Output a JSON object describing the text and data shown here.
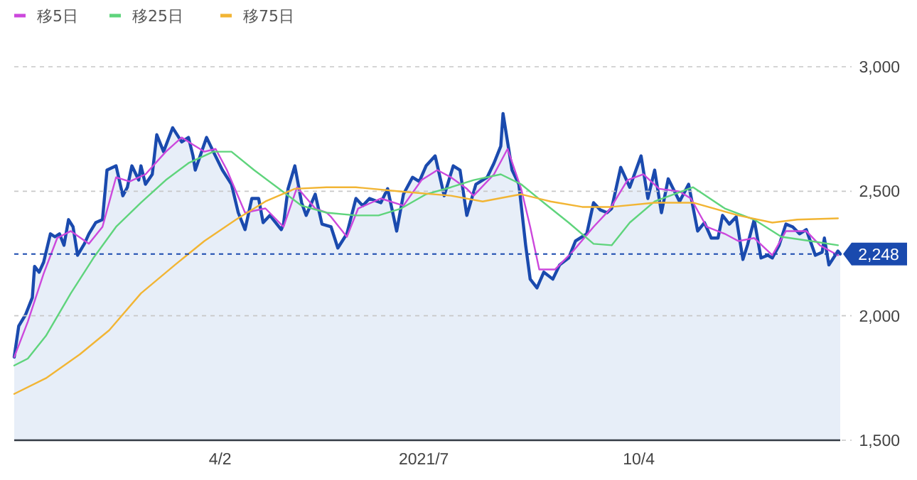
{
  "chart_data": {
    "type": "line",
    "xlim": [
      "2021-01-01",
      "2022-01-01"
    ],
    "xticks": [
      {
        "value": "2021-04-02",
        "label": "4/2"
      },
      {
        "value": "2021-07-01",
        "label": "2021/7"
      },
      {
        "value": "2021-10-04",
        "label": "10/4"
      }
    ],
    "ylim": [
      1500,
      3000
    ],
    "yticks": [
      {
        "value": 1500,
        "label": "1,500"
      },
      {
        "value": 2000,
        "label": "2,000"
      },
      {
        "value": 2500,
        "label": "2,500"
      },
      {
        "value": 3000,
        "label": "3,000"
      }
    ],
    "grid": "y",
    "legend": "top left",
    "series": [
      {
        "type": "area",
        "color": "#1a4aae",
        "x": [
          "2021-01-01",
          "2021-01-03",
          "2021-01-06",
          "2021-01-09",
          "2021-01-10",
          "2021-01-12",
          "2021-01-14",
          "2021-01-17",
          "2021-01-19",
          "2021-01-21",
          "2021-01-23",
          "2021-01-25",
          "2021-01-27",
          "2021-01-29",
          "2021-02-01",
          "2021-02-03",
          "2021-02-06",
          "2021-02-09",
          "2021-02-11",
          "2021-02-15",
          "2021-02-18",
          "2021-02-20",
          "2021-02-22",
          "2021-02-25",
          "2021-02-26",
          "2021-02-28",
          "2021-03-03",
          "2021-03-05",
          "2021-03-08",
          "2021-03-12",
          "2021-03-16",
          "2021-03-19",
          "2021-03-21",
          "2021-03-22",
          "2021-03-27",
          "2021-03-30",
          "2021-04-03",
          "2021-04-07",
          "2021-04-10",
          "2021-04-13",
          "2021-04-16",
          "2021-04-19",
          "2021-04-21",
          "2021-04-24",
          "2021-04-29",
          "2021-04-30",
          "2021-05-02",
          "2021-05-05",
          "2021-05-08",
          "2021-05-10",
          "2021-05-14",
          "2021-05-17",
          "2021-05-21",
          "2021-05-24",
          "2021-05-28",
          "2021-06-01",
          "2021-06-04",
          "2021-06-07",
          "2021-06-12",
          "2021-06-15",
          "2021-06-19",
          "2021-06-22",
          "2021-06-26",
          "2021-06-29",
          "2021-07-02",
          "2021-07-06",
          "2021-07-10",
          "2021-07-14",
          "2021-07-17",
          "2021-07-20",
          "2021-07-24",
          "2021-07-29",
          "2021-08-01",
          "2021-08-04",
          "2021-08-05",
          "2021-08-07",
          "2021-08-09",
          "2021-08-12",
          "2021-08-15",
          "2021-08-17",
          "2021-08-20",
          "2021-08-23",
          "2021-08-27",
          "2021-08-30",
          "2021-09-03",
          "2021-09-06",
          "2021-09-11",
          "2021-09-14",
          "2021-09-17",
          "2021-09-20",
          "2021-09-22",
          "2021-09-26",
          "2021-09-30",
          "2021-10-05",
          "2021-10-08",
          "2021-10-11",
          "2021-10-14",
          "2021-10-17",
          "2021-10-22",
          "2021-10-26",
          "2021-10-30",
          "2021-11-02",
          "2021-11-05",
          "2021-11-08",
          "2021-11-10",
          "2021-11-13",
          "2021-11-16",
          "2021-11-19",
          "2021-11-21",
          "2021-11-24",
          "2021-11-27",
          "2021-11-30",
          "2021-12-02",
          "2021-12-05",
          "2021-12-08",
          "2021-12-11",
          "2021-12-14",
          "2021-12-17",
          "2021-12-21",
          "2021-12-24",
          "2021-12-25",
          "2021-12-27",
          "2021-12-31",
          "2022-01-01"
        ],
        "values": [
          1834,
          1959,
          2004,
          2073,
          2198,
          2175,
          2215,
          2329,
          2317,
          2329,
          2283,
          2386,
          2357,
          2243,
          2289,
          2329,
          2374,
          2386,
          2585,
          2602,
          2482,
          2516,
          2602,
          2545,
          2602,
          2528,
          2568,
          2727,
          2659,
          2755,
          2698,
          2716,
          2642,
          2585,
          2716,
          2659,
          2585,
          2528,
          2414,
          2346,
          2471,
          2471,
          2374,
          2403,
          2346,
          2368,
          2510,
          2602,
          2454,
          2403,
          2488,
          2368,
          2357,
          2272,
          2329,
          2471,
          2442,
          2471,
          2454,
          2510,
          2340,
          2488,
          2556,
          2539,
          2602,
          2642,
          2482,
          2602,
          2585,
          2403,
          2528,
          2556,
          2613,
          2681,
          2812,
          2698,
          2585,
          2528,
          2283,
          2147,
          2112,
          2175,
          2147,
          2204,
          2232,
          2300,
          2329,
          2454,
          2425,
          2414,
          2431,
          2596,
          2516,
          2642,
          2471,
          2585,
          2414,
          2550,
          2459,
          2528,
          2340,
          2374,
          2312,
          2312,
          2403,
          2368,
          2397,
          2226,
          2283,
          2386,
          2232,
          2243,
          2232,
          2283,
          2368,
          2357,
          2329,
          2346,
          2243,
          2255,
          2312,
          2204,
          2260,
          2248
        ]
      },
      {
        "name": "移5日",
        "color": "#cc48dc",
        "x": [
          "2021-01-01",
          "2021-01-07",
          "2021-01-14",
          "2021-01-20",
          "2021-01-26",
          "2021-02-03",
          "2021-02-09",
          "2021-02-15",
          "2021-02-21",
          "2021-02-28",
          "2021-03-09",
          "2021-03-16",
          "2021-03-21",
          "2021-03-26",
          "2021-03-31",
          "2021-04-05",
          "2021-04-13",
          "2021-04-22",
          "2021-04-30",
          "2021-05-06",
          "2021-05-14",
          "2021-05-19",
          "2021-05-21",
          "2021-05-28",
          "2021-06-02",
          "2021-06-12",
          "2021-06-22",
          "2021-06-30",
          "2021-07-07",
          "2021-07-13",
          "2021-07-20",
          "2021-07-23",
          "2021-08-01",
          "2021-08-07",
          "2021-08-13",
          "2021-08-17",
          "2021-08-21",
          "2021-08-28",
          "2021-09-05",
          "2021-09-14",
          "2021-09-21",
          "2021-09-29",
          "2021-10-06",
          "2021-10-13",
          "2021-10-22",
          "2021-10-27",
          "2021-11-03",
          "2021-11-11",
          "2021-11-17",
          "2021-11-24",
          "2021-12-02",
          "2021-12-08",
          "2021-12-17",
          "2021-12-23",
          "2021-12-31"
        ],
        "values": [
          1834,
          1976,
          2169,
          2312,
          2340,
          2289,
          2357,
          2556,
          2539,
          2568,
          2659,
          2716,
          2687,
          2659,
          2670,
          2585,
          2414,
          2431,
          2357,
          2516,
          2431,
          2414,
          2397,
          2317,
          2431,
          2471,
          2442,
          2545,
          2585,
          2556,
          2510,
          2482,
          2568,
          2670,
          2510,
          2357,
          2186,
          2186,
          2260,
          2357,
          2425,
          2545,
          2568,
          2510,
          2499,
          2471,
          2357,
          2329,
          2300,
          2312,
          2243,
          2340,
          2340,
          2283,
          2243
        ]
      },
      {
        "name": "移25日",
        "color": "#5fd47c",
        "x": [
          "2021-01-01",
          "2021-01-07",
          "2021-01-15",
          "2021-01-26",
          "2021-02-05",
          "2021-02-15",
          "2021-02-26",
          "2021-03-09",
          "2021-03-19",
          "2021-03-30",
          "2021-04-07",
          "2021-04-17",
          "2021-04-28",
          "2021-05-08",
          "2021-05-19",
          "2021-06-01",
          "2021-06-11",
          "2021-06-21",
          "2021-07-02",
          "2021-07-13",
          "2021-07-23",
          "2021-08-04",
          "2021-08-13",
          "2021-08-23",
          "2021-09-03",
          "2021-09-14",
          "2021-09-22",
          "2021-09-30",
          "2021-10-11",
          "2021-10-28",
          "2021-11-11",
          "2021-11-24",
          "2021-12-06",
          "2021-12-19",
          "2021-12-31"
        ],
        "values": [
          1800,
          1828,
          1919,
          2090,
          2232,
          2357,
          2454,
          2545,
          2613,
          2659,
          2659,
          2585,
          2510,
          2442,
          2414,
          2403,
          2403,
          2431,
          2488,
          2516,
          2545,
          2568,
          2528,
          2454,
          2374,
          2289,
          2283,
          2374,
          2459,
          2516,
          2431,
          2386,
          2317,
          2300,
          2283
        ]
      },
      {
        "name": "移75日",
        "color": "#f2b534",
        "x": [
          "2021-01-01",
          "2021-01-15",
          "2021-01-30",
          "2021-02-12",
          "2021-02-26",
          "2021-03-13",
          "2021-03-26",
          "2021-04-09",
          "2021-04-22",
          "2021-05-05",
          "2021-05-19",
          "2021-06-01",
          "2021-06-21",
          "2021-07-13",
          "2021-07-27",
          "2021-08-13",
          "2021-08-26",
          "2021-09-09",
          "2021-09-22",
          "2021-10-11",
          "2021-10-28",
          "2021-11-17",
          "2021-12-02",
          "2021-12-13",
          "2021-12-31"
        ],
        "values": [
          1686,
          1749,
          1845,
          1942,
          2090,
          2204,
          2300,
          2386,
          2459,
          2510,
          2516,
          2516,
          2499,
          2482,
          2459,
          2488,
          2459,
          2437,
          2437,
          2454,
          2454,
          2403,
          2374,
          2386,
          2391
        ]
      }
    ],
    "ref_lines": [
      {
        "axis": "y",
        "value": 2248,
        "label": "2,248",
        "color": "#1a4aae",
        "line_style": "dashed"
      }
    ]
  }
}
